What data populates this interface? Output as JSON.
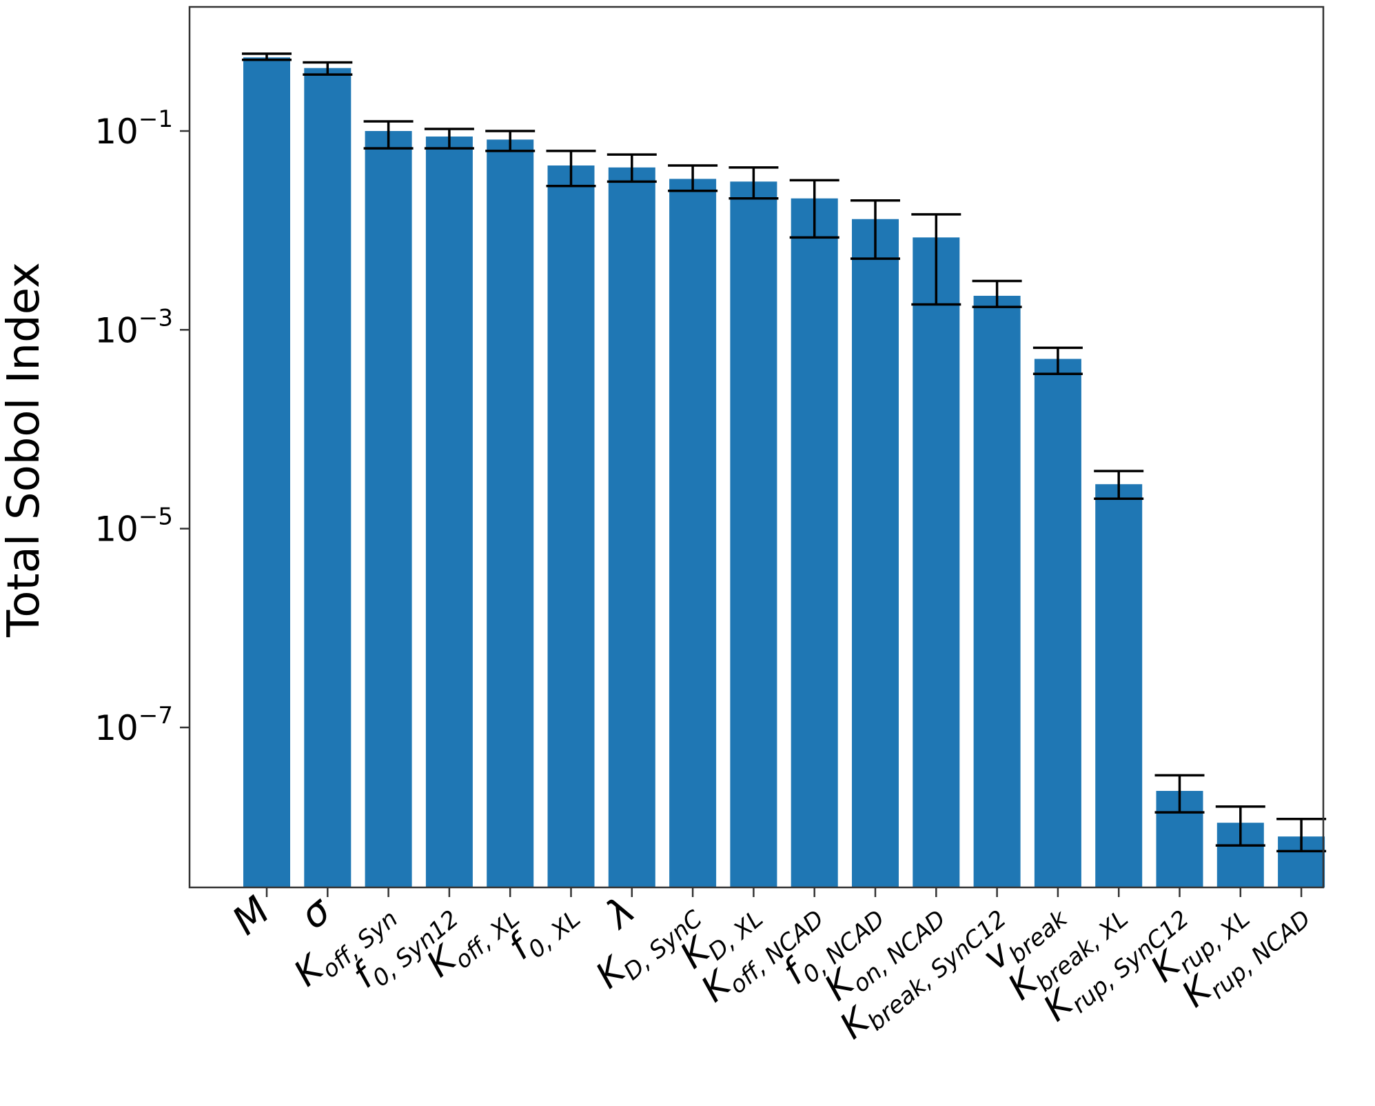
{
  "chart_data": {
    "type": "bar",
    "title": "",
    "xlabel": "",
    "ylabel": "Total Sobol Index",
    "yscale": "log",
    "ylim": [
      3e-09,
      3.0
    ],
    "yticks": [
      {
        "value": 0.1,
        "base": "10",
        "exp": "−1"
      },
      {
        "value": 0.001,
        "base": "10",
        "exp": "−3"
      },
      {
        "value": 1e-05,
        "base": "10",
        "exp": "−5"
      },
      {
        "value": 1e-07,
        "base": "10",
        "exp": "−7"
      }
    ],
    "grid": false,
    "bar_color": "#1f77b4",
    "error_color": "#000000",
    "categories": [
      {
        "main": "M",
        "sub": ""
      },
      {
        "main": "σ",
        "sub": ""
      },
      {
        "main": "K",
        "sub": "off, Syn"
      },
      {
        "main": "f",
        "sub": "0, Syn12"
      },
      {
        "main": "K",
        "sub": "off, XL"
      },
      {
        "main": "f",
        "sub": "0, XL"
      },
      {
        "main": "λ",
        "sub": ""
      },
      {
        "main": "K",
        "sub": "D, SynC"
      },
      {
        "main": "K",
        "sub": "D, XL"
      },
      {
        "main": "K",
        "sub": "off, NCAD"
      },
      {
        "main": "f",
        "sub": "0, NCAD"
      },
      {
        "main": "K",
        "sub": "on, NCAD"
      },
      {
        "main": "K",
        "sub": "break, SynC12"
      },
      {
        "main": "v",
        "sub": "break"
      },
      {
        "main": "K",
        "sub": "break, XL"
      },
      {
        "main": "K",
        "sub": "rup, SynC12"
      },
      {
        "main": "K",
        "sub": "rup, XL"
      },
      {
        "main": "K",
        "sub": "rup, NCAD"
      }
    ],
    "values": [
      0.55,
      0.43,
      0.1,
      0.088,
      0.082,
      0.045,
      0.043,
      0.033,
      0.031,
      0.021,
      0.013,
      0.0085,
      0.0022,
      0.00051,
      2.8e-05,
      2.3e-08,
      1.1e-08,
      8e-09
    ],
    "error_low": [
      0.52,
      0.37,
      0.067,
      0.067,
      0.063,
      0.028,
      0.031,
      0.025,
      0.021,
      0.0085,
      0.0052,
      0.0018,
      0.0017,
      0.00036,
      2e-05,
      1.4e-08,
      6.5e-09,
      5.7e-09
    ],
    "error_high": [
      0.6,
      0.49,
      0.125,
      0.105,
      0.1,
      0.063,
      0.058,
      0.045,
      0.043,
      0.032,
      0.02,
      0.0145,
      0.0031,
      0.00066,
      3.8e-05,
      3.3e-08,
      1.6e-08,
      1.2e-08
    ]
  }
}
